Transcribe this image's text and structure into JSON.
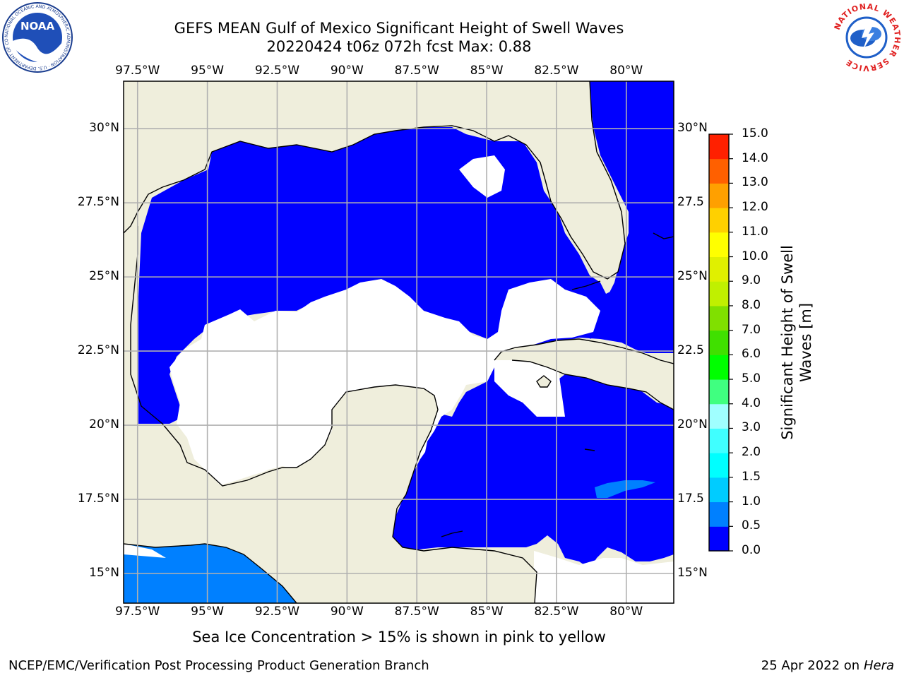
{
  "header": {
    "title": "GEFS MEAN Gulf of Mexico Significant Height of Swell Waves",
    "subtitle": "20220424 t06z 072h fcst   Max: 0.88"
  },
  "logos": {
    "left": {
      "name": "NOAA",
      "ring_text": "NATIONAL OCEANIC AND ATMOSPHERIC ADMINISTRATION · U.S. DEPARTMENT OF COMMERCE"
    },
    "right": {
      "ring_text": "NATIONAL WEATHER SERVICE"
    }
  },
  "map": {
    "lon_labels": [
      "97.5°W",
      "95°W",
      "92.5°W",
      "90°W",
      "87.5°W",
      "85°W",
      "82.5°W",
      "80°W"
    ],
    "lon_values": [
      -97.5,
      -95,
      -92.5,
      -90,
      -87.5,
      -85,
      -82.5,
      -80
    ],
    "lat_labels_left": [
      "30°N",
      "27.5°N",
      "25°N",
      "22.5°N",
      "20°N",
      "17.5°N",
      "15°N"
    ],
    "lat_labels_right": [
      "30°N",
      "27.5",
      "25°N",
      "22.5",
      "20°N",
      "17.5",
      "15°N"
    ],
    "lat_values": [
      30,
      27.5,
      25,
      22.5,
      20,
      17.5,
      15
    ],
    "extent": {
      "lon_min": -98,
      "lon_max": -78.3,
      "lat_min": 14,
      "lat_max": 31.6
    },
    "colors": {
      "land": "#efeedc",
      "water_low": "#0000ff",
      "water_mid": "#0080ff",
      "ice_free": "#ffffff",
      "grid": "#b0b0b0",
      "coast": "#000000"
    }
  },
  "colorbar": {
    "title_line1": "Significant Height of Swell",
    "title_line2": "Waves [m]",
    "labels": [
      "0.0",
      "0.5",
      "1.0",
      "1.5",
      "2.0",
      "3.0",
      "4.0",
      "5.0",
      "6.0",
      "7.0",
      "8.0",
      "9.0",
      "10.0",
      "11.0",
      "12.0",
      "13.0",
      "14.0",
      "15.0"
    ],
    "colors": [
      "#0000ff",
      "#0080ff",
      "#00ccff",
      "#00ffff",
      "#40ffff",
      "#a0ffff",
      "#40ff80",
      "#00ff00",
      "#40e000",
      "#80e000",
      "#c0f000",
      "#e0f000",
      "#ffff00",
      "#ffd000",
      "#ffa000",
      "#ff6000",
      "#ff2000",
      "#ff0000"
    ]
  },
  "note": "Sea Ice Concentration > 15% is shown in pink to yellow",
  "footer": {
    "left": "NCEP/EMC/Verification Post Processing Product Generation Branch",
    "right_date": "25 Apr 2022 on ",
    "right_host": "Hera"
  }
}
